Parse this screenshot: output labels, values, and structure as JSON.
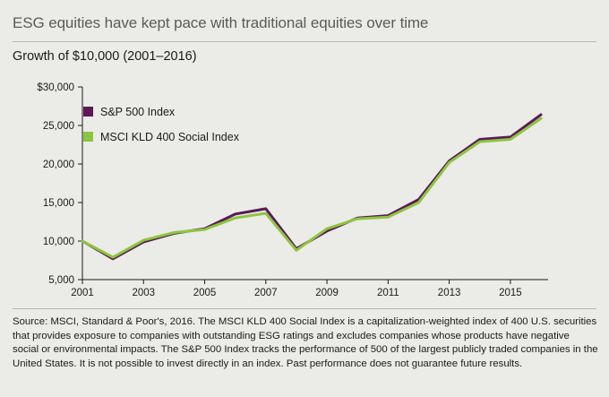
{
  "title": "ESG equities have kept pace with traditional equities over time",
  "subtitle": "Growth of $10,000 (2001–2016)",
  "footnote": "Source: MSCI, Standard & Poor's, 2016. The MSCI KLD 400 Social Index is a capitalization-weighted index of 400 U.S. securities that provides exposure to companies with outstanding ESG ratings and excludes companies whose products have negative social or environmental impacts. The S&P 500 Index tracks the performance of 500 of the largest publicly traded companies in the United States. It is not possible to invest directly in an index. Past performance does not guarantee future results.",
  "chart_data": {
    "type": "line",
    "title": "ESG equities have kept pace with traditional equities over time",
    "subtitle": "Growth of $10,000 (2001–2016)",
    "xlabel": "",
    "ylabel": "",
    "x": [
      2001,
      2002,
      2003,
      2004,
      2005,
      2006,
      2007,
      2008,
      2009,
      2010,
      2011,
      2012,
      2013,
      2014,
      2015,
      2016
    ],
    "x_tick_labels": [
      "2001",
      "2003",
      "2005",
      "2007",
      "2009",
      "2011",
      "2013",
      "2015"
    ],
    "x_tick_values": [
      2001,
      2003,
      2005,
      2007,
      2009,
      2011,
      2013,
      2015
    ],
    "y_tick_labels": [
      "$30,000",
      "25,000",
      "20,000",
      "15,000",
      "10,000",
      "5,000"
    ],
    "y_tick_values": [
      30000,
      25000,
      20000,
      15000,
      10000,
      5000
    ],
    "xlim": [
      2001,
      2016
    ],
    "ylim": [
      5000,
      30000
    ],
    "grid": false,
    "legend": "top-left",
    "series": [
      {
        "name": "S&P 500 Index",
        "color": "#5b1a57",
        "values": [
          10000,
          7700,
          9900,
          11000,
          11600,
          13500,
          14200,
          9000,
          11300,
          13000,
          13300,
          15400,
          20400,
          23200,
          23500,
          26400
        ]
      },
      {
        "name": "MSCI KLD 400 Social Index",
        "color": "#8cc63f",
        "values": [
          10000,
          7900,
          10100,
          11100,
          11500,
          13000,
          13600,
          8800,
          11600,
          12900,
          13100,
          15000,
          20200,
          22900,
          23200,
          25900
        ]
      }
    ]
  }
}
